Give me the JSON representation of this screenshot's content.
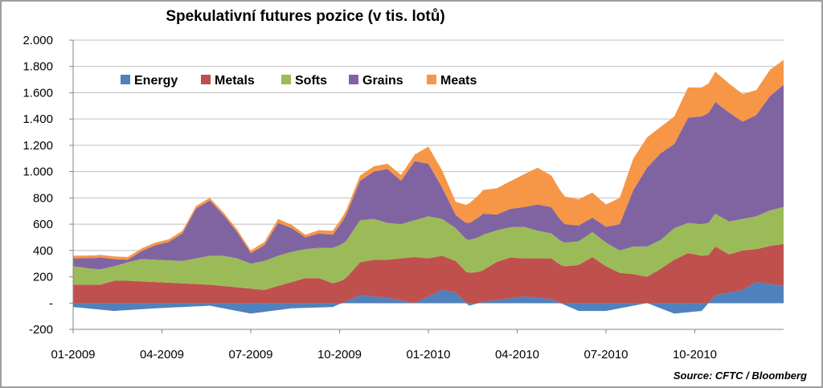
{
  "chart_data": {
    "type": "area",
    "stacked": true,
    "title": "Spekulativní futures pozice (v tis. lotů)",
    "source": "Source: CFTC / Bloomberg",
    "xlabel": "",
    "ylabel": "",
    "ylim": [
      -200,
      2000
    ],
    "yticks": [
      -200,
      0,
      200,
      400,
      600,
      800,
      1000,
      1200,
      1400,
      1600,
      1800,
      2000
    ],
    "ytick_labels": [
      "-200",
      "-",
      "200",
      "400",
      "600",
      "800",
      "1.000",
      "1.200",
      "1.400",
      "1.600",
      "1.800",
      "2.000"
    ],
    "xtick_labels": [
      "01-2009",
      "04-2009",
      "07-2009",
      "10-2009",
      "01-2010",
      "04-2010",
      "07-2010",
      "10-2010"
    ],
    "xtick_weeks": [
      0,
      13,
      26,
      39,
      52,
      65,
      78,
      91
    ],
    "weeks": 104,
    "grid": "horizontal",
    "legend_position": "top-left inside",
    "colors": {
      "Energy": "#4F81BD",
      "Metals": "#C0504D",
      "Softs": "#9BBB59",
      "Grains": "#8064A2",
      "Meats": "#F79646"
    },
    "series": [
      {
        "name": "Energy",
        "knots": [
          [
            0,
            -30
          ],
          [
            6,
            -60
          ],
          [
            12,
            -40
          ],
          [
            20,
            -20
          ],
          [
            26,
            -80
          ],
          [
            32,
            -40
          ],
          [
            38,
            -30
          ],
          [
            42,
            60
          ],
          [
            46,
            40
          ],
          [
            50,
            0
          ],
          [
            54,
            100
          ],
          [
            56,
            80
          ],
          [
            58,
            -20
          ],
          [
            60,
            10
          ],
          [
            66,
            50
          ],
          [
            70,
            30
          ],
          [
            74,
            -60
          ],
          [
            78,
            -60
          ],
          [
            84,
            0
          ],
          [
            88,
            -80
          ],
          [
            92,
            -60
          ],
          [
            94,
            60
          ],
          [
            98,
            100
          ],
          [
            100,
            160
          ],
          [
            104,
            130
          ]
        ]
      },
      {
        "name": "Metals",
        "knots": [
          [
            0,
            140
          ],
          [
            4,
            140
          ],
          [
            6,
            170
          ],
          [
            8,
            170
          ],
          [
            12,
            160
          ],
          [
            16,
            150
          ],
          [
            20,
            140
          ],
          [
            24,
            120
          ],
          [
            26,
            110
          ],
          [
            28,
            100
          ],
          [
            30,
            130
          ],
          [
            34,
            190
          ],
          [
            36,
            190
          ],
          [
            38,
            150
          ],
          [
            40,
            180
          ],
          [
            42,
            250
          ],
          [
            44,
            280
          ],
          [
            46,
            290
          ],
          [
            48,
            320
          ],
          [
            50,
            350
          ],
          [
            52,
            290
          ],
          [
            54,
            260
          ],
          [
            56,
            240
          ],
          [
            58,
            230
          ],
          [
            60,
            240
          ],
          [
            62,
            290
          ],
          [
            64,
            310
          ],
          [
            66,
            290
          ],
          [
            68,
            300
          ],
          [
            70,
            310
          ],
          [
            72,
            280
          ],
          [
            74,
            290
          ],
          [
            76,
            350
          ],
          [
            78,
            280
          ],
          [
            80,
            230
          ],
          [
            82,
            220
          ],
          [
            84,
            200
          ],
          [
            86,
            260
          ],
          [
            88,
            330
          ],
          [
            90,
            380
          ],
          [
            92,
            360
          ],
          [
            94,
            370
          ],
          [
            96,
            290
          ],
          [
            98,
            300
          ],
          [
            100,
            250
          ],
          [
            102,
            290
          ],
          [
            104,
            320
          ]
        ]
      },
      {
        "name": "Softs",
        "knots": [
          [
            0,
            140
          ],
          [
            3,
            120
          ],
          [
            6,
            110
          ],
          [
            10,
            170
          ],
          [
            12,
            170
          ],
          [
            16,
            170
          ],
          [
            20,
            220
          ],
          [
            22,
            230
          ],
          [
            24,
            220
          ],
          [
            26,
            190
          ],
          [
            28,
            220
          ],
          [
            30,
            230
          ],
          [
            32,
            230
          ],
          [
            34,
            220
          ],
          [
            36,
            230
          ],
          [
            38,
            270
          ],
          [
            40,
            280
          ],
          [
            42,
            320
          ],
          [
            44,
            310
          ],
          [
            46,
            280
          ],
          [
            48,
            260
          ],
          [
            50,
            280
          ],
          [
            52,
            320
          ],
          [
            54,
            280
          ],
          [
            56,
            250
          ],
          [
            58,
            250
          ],
          [
            60,
            270
          ],
          [
            62,
            240
          ],
          [
            64,
            230
          ],
          [
            66,
            240
          ],
          [
            68,
            210
          ],
          [
            70,
            190
          ],
          [
            72,
            180
          ],
          [
            74,
            180
          ],
          [
            76,
            190
          ],
          [
            78,
            180
          ],
          [
            80,
            170
          ],
          [
            82,
            210
          ],
          [
            84,
            230
          ],
          [
            86,
            220
          ],
          [
            88,
            240
          ],
          [
            90,
            230
          ],
          [
            92,
            240
          ],
          [
            94,
            250
          ],
          [
            96,
            250
          ],
          [
            98,
            240
          ],
          [
            100,
            250
          ],
          [
            102,
            270
          ],
          [
            104,
            280
          ]
        ]
      },
      {
        "name": "Grains",
        "knots": [
          [
            0,
            60
          ],
          [
            4,
            90
          ],
          [
            8,
            20
          ],
          [
            10,
            60
          ],
          [
            12,
            110
          ],
          [
            14,
            140
          ],
          [
            16,
            210
          ],
          [
            18,
            380
          ],
          [
            20,
            420
          ],
          [
            24,
            200
          ],
          [
            26,
            80
          ],
          [
            28,
            120
          ],
          [
            30,
            250
          ],
          [
            32,
            180
          ],
          [
            34,
            90
          ],
          [
            36,
            110
          ],
          [
            38,
            100
          ],
          [
            40,
            200
          ],
          [
            42,
            300
          ],
          [
            44,
            360
          ],
          [
            46,
            410
          ],
          [
            48,
            330
          ],
          [
            50,
            450
          ],
          [
            52,
            400
          ],
          [
            54,
            240
          ],
          [
            56,
            100
          ],
          [
            58,
            130
          ],
          [
            60,
            160
          ],
          [
            62,
            120
          ],
          [
            64,
            140
          ],
          [
            66,
            150
          ],
          [
            68,
            200
          ],
          [
            70,
            200
          ],
          [
            72,
            140
          ],
          [
            74,
            120
          ],
          [
            76,
            110
          ],
          [
            78,
            120
          ],
          [
            80,
            200
          ],
          [
            82,
            430
          ],
          [
            84,
            600
          ],
          [
            86,
            660
          ],
          [
            88,
            640
          ],
          [
            90,
            800
          ],
          [
            92,
            820
          ],
          [
            94,
            850
          ],
          [
            96,
            830
          ],
          [
            98,
            740
          ],
          [
            100,
            770
          ],
          [
            102,
            870
          ],
          [
            104,
            930
          ]
        ]
      },
      {
        "name": "Meats",
        "knots": [
          [
            0,
            20
          ],
          [
            6,
            20
          ],
          [
            12,
            20
          ],
          [
            18,
            20
          ],
          [
            22,
            20
          ],
          [
            26,
            20
          ],
          [
            30,
            30
          ],
          [
            34,
            20
          ],
          [
            38,
            30
          ],
          [
            42,
            40
          ],
          [
            46,
            40
          ],
          [
            50,
            50
          ],
          [
            52,
            130
          ],
          [
            54,
            130
          ],
          [
            56,
            100
          ],
          [
            58,
            150
          ],
          [
            60,
            180
          ],
          [
            62,
            200
          ],
          [
            64,
            210
          ],
          [
            66,
            250
          ],
          [
            68,
            280
          ],
          [
            70,
            240
          ],
          [
            72,
            210
          ],
          [
            74,
            200
          ],
          [
            76,
            190
          ],
          [
            78,
            170
          ],
          [
            80,
            200
          ],
          [
            82,
            240
          ],
          [
            84,
            230
          ],
          [
            86,
            200
          ],
          [
            88,
            210
          ],
          [
            90,
            230
          ],
          [
            92,
            220
          ],
          [
            94,
            230
          ],
          [
            96,
            220
          ],
          [
            98,
            210
          ],
          [
            100,
            190
          ],
          [
            102,
            200
          ],
          [
            104,
            190
          ]
        ]
      }
    ]
  }
}
